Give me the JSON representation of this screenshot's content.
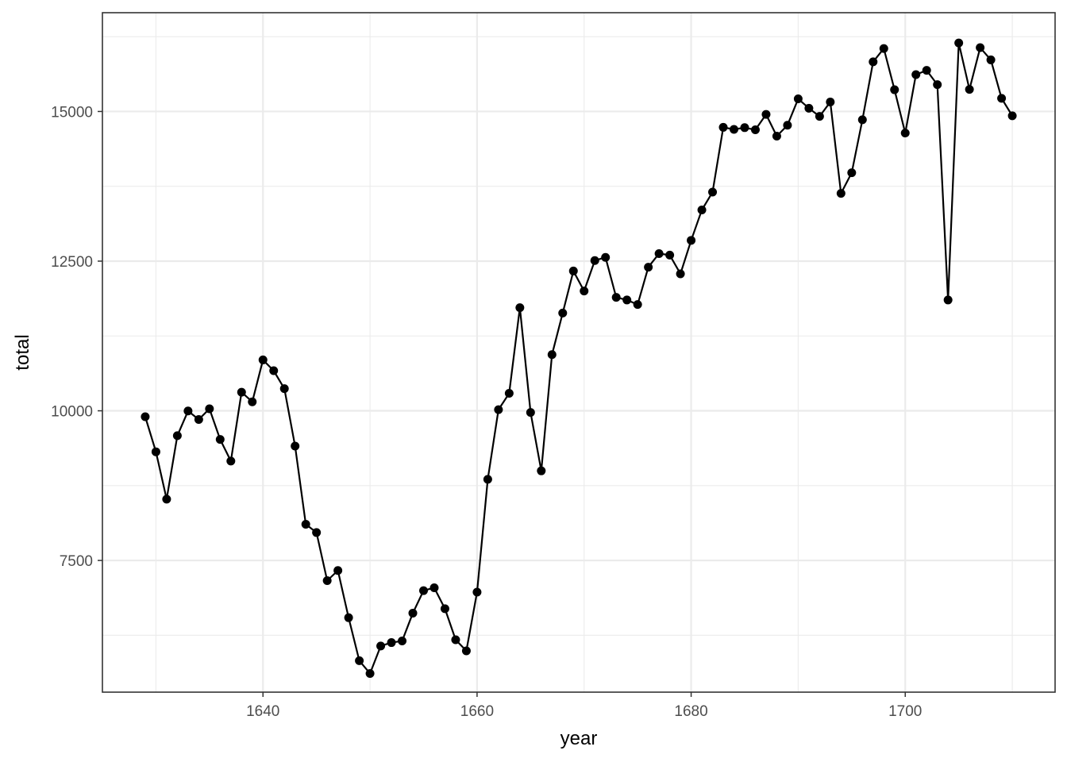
{
  "chart_data": {
    "type": "line",
    "title": "",
    "xlabel": "year",
    "ylabel": "total",
    "xlim": [
      1625,
      1714
    ],
    "ylim": [
      5300,
      16650
    ],
    "x_ticks": [
      1640,
      1660,
      1680,
      1700
    ],
    "x_tick_labels": [
      "1640",
      "1660",
      "1680",
      "1700"
    ],
    "x_minor_ticks": [
      1630,
      1650,
      1670,
      1690,
      1710
    ],
    "y_ticks": [
      7500,
      10000,
      12500,
      15000
    ],
    "y_tick_labels": [
      "7500",
      "10000",
      "12500",
      "15000"
    ],
    "y_minor_ticks": [
      6250,
      8750,
      11250,
      13750,
      16250
    ],
    "grid": true,
    "markers": true,
    "colors": {
      "series": "#000000",
      "grid": "#ebebeb",
      "border": "#333333",
      "tick_label": "#4d4d4d"
    },
    "series": [
      {
        "x": [
          1629,
          1630,
          1631,
          1632,
          1633,
          1634,
          1635,
          1636,
          1637,
          1638,
          1639,
          1640,
          1641,
          1642,
          1643,
          1644,
          1645,
          1646,
          1647,
          1648,
          1649,
          1650,
          1651,
          1652,
          1653,
          1654,
          1655,
          1656,
          1657,
          1658,
          1659,
          1660,
          1661,
          1662,
          1663,
          1664,
          1665,
          1666,
          1667,
          1668,
          1669,
          1670,
          1671,
          1672,
          1673,
          1674,
          1675,
          1676,
          1677,
          1678,
          1679,
          1680,
          1681,
          1682,
          1683,
          1684,
          1685,
          1686,
          1687,
          1688,
          1689,
          1690,
          1691,
          1692,
          1693,
          1694,
          1695,
          1696,
          1697,
          1698,
          1699,
          1700,
          1701,
          1702,
          1703,
          1704,
          1705,
          1706,
          1707,
          1708,
          1709,
          1710
        ],
        "y": [
          9901,
          9315,
          8524,
          9584,
          9997,
          9855,
          10034,
          9522,
          9160,
          10311,
          10150,
          10850,
          10670,
          10370,
          9410,
          8104,
          7966,
          7163,
          7332,
          6544,
          5825,
          5612,
          6071,
          6128,
          6155,
          6620,
          6996,
          7044,
          6694,
          6175,
          5990,
          6971,
          8855,
          10019,
          10292,
          11722,
          9972,
          8997,
          10938,
          11633,
          12335,
          12001,
          12510,
          12563,
          11895,
          11851,
          11775,
          12399,
          12626,
          12601,
          12288,
          12847,
          13355,
          13653,
          14735,
          14701,
          14730,
          14694,
          14951,
          14588,
          14771,
          15211,
          15054,
          14918,
          15159,
          13632,
          13976,
          14861,
          15829,
          16052,
          15363,
          14639,
          15616,
          15687,
          15448,
          11851,
          16145,
          15369,
          16066,
          15862,
          15220,
          14928
        ]
      }
    ]
  }
}
